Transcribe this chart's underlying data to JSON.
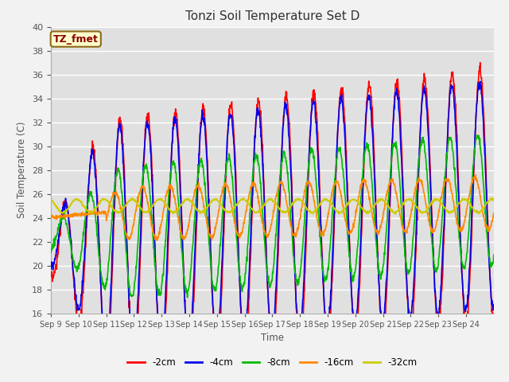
{
  "title": "Tonzi Soil Temperature Set D",
  "xlabel": "Time",
  "ylabel": "Soil Temperature (C)",
  "ylim": [
    16,
    40
  ],
  "yticks": [
    16,
    18,
    20,
    22,
    24,
    26,
    28,
    30,
    32,
    34,
    36,
    38,
    40
  ],
  "xtick_labels": [
    "Sep 9",
    "Sep 10",
    "Sep 11",
    "Sep 12",
    "Sep 13",
    "Sep 14",
    "Sep 15",
    "Sep 16",
    "Sep 17",
    "Sep 18",
    "Sep 19",
    "Sep 20",
    "Sep 21",
    "Sep 22",
    "Sep 23",
    "Sep 24"
  ],
  "annotation_text": "TZ_fmet",
  "annotation_color": "#8b0000",
  "annotation_bg": "#ffffcc",
  "annotation_border": "#8b6914",
  "series": {
    "-2cm": {
      "color": "#ff0000"
    },
    "-4cm": {
      "color": "#0000ee"
    },
    "-8cm": {
      "color": "#00bb00"
    },
    "-16cm": {
      "color": "#ff8800"
    },
    "-32cm": {
      "color": "#cccc00"
    }
  },
  "bg_color": "#e0e0e0",
  "fig_color": "#f2f2f2",
  "line_width": 1.2
}
